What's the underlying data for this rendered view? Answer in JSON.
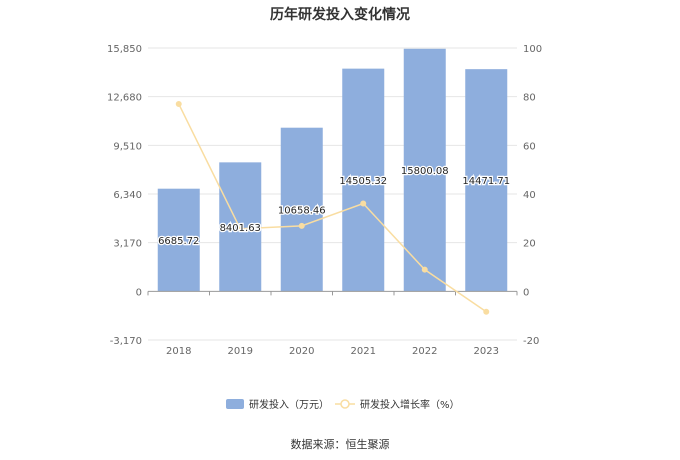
{
  "chart_data": {
    "type": "bar",
    "title": "历年研发投入变化情况",
    "source_note": "数据来源：恒生聚源",
    "categories": [
      "2018",
      "2019",
      "2020",
      "2021",
      "2022",
      "2023"
    ],
    "series": [
      {
        "name": "研发投入（万元）",
        "type": "bar",
        "axis": "left",
        "color": "#8eaedd",
        "values": [
          6685.72,
          8401.63,
          10658.46,
          14505.32,
          15800.08,
          14471.71
        ],
        "labels": [
          "6685.72",
          "8401.63",
          "10658.46",
          "14505.32",
          "15800.08",
          "14471.71"
        ]
      },
      {
        "name": "研发投入增长率（%）",
        "type": "line",
        "axis": "right",
        "color": "#f9dda1",
        "values": [
          77,
          25.7,
          26.9,
          36.1,
          8.9,
          -8.4
        ]
      }
    ],
    "y_left": {
      "ylim": [
        -3170,
        15850
      ],
      "ticks": [
        -3170,
        0,
        3170,
        6340,
        9510,
        12680,
        15850
      ],
      "tick_labels": [
        "-3,170",
        "0",
        "3,170",
        "6,340",
        "9,510",
        "12,680",
        "15,850"
      ]
    },
    "y_right": {
      "ylim": [
        -20,
        100
      ],
      "ticks": [
        -20,
        0,
        20,
        40,
        60,
        80,
        100
      ],
      "tick_labels": [
        "-20",
        "0",
        "20",
        "40",
        "60",
        "80",
        "100"
      ]
    },
    "grid": true,
    "legend_position": "bottom"
  }
}
